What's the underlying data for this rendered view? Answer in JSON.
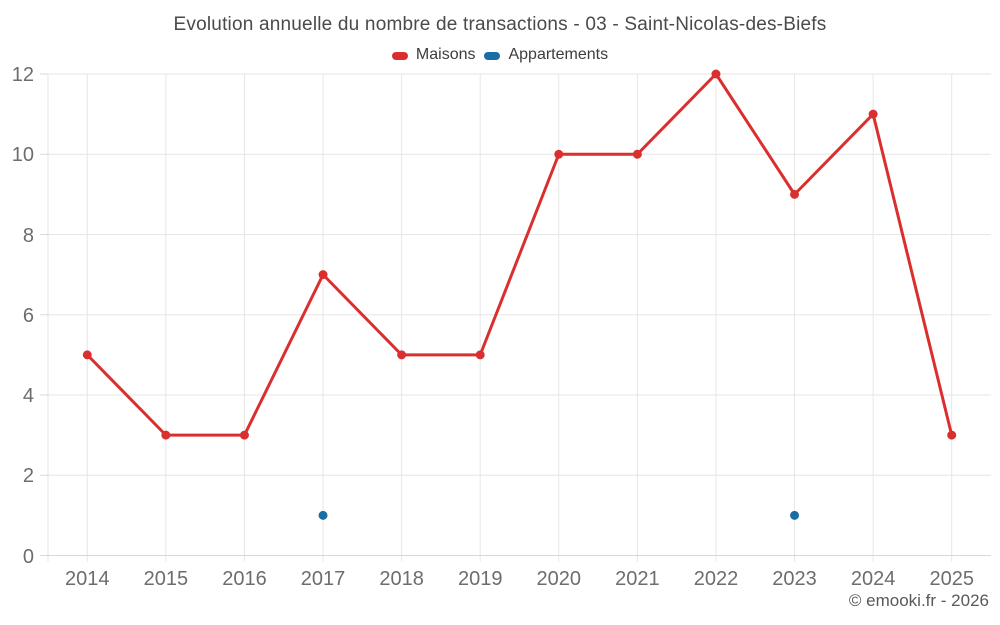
{
  "chart_data": {
    "type": "line",
    "title": "Evolution annuelle du nombre de transactions - 03 - Saint-Nicolas-des-Biefs",
    "categories": [
      "2014",
      "2015",
      "2016",
      "2017",
      "2018",
      "2019",
      "2020",
      "2021",
      "2022",
      "2023",
      "2024",
      "2025"
    ],
    "series": [
      {
        "name": "Maisons",
        "color": "#d9302f",
        "values": [
          5,
          3,
          3,
          7,
          5,
          5,
          10,
          10,
          12,
          9,
          11,
          3
        ]
      },
      {
        "name": "Appartements",
        "color": "#1a6da5",
        "values": [
          null,
          null,
          null,
          1,
          null,
          null,
          null,
          null,
          null,
          1,
          null,
          null
        ]
      }
    ],
    "xlabel": "",
    "ylabel": "",
    "ylim": [
      0,
      12
    ],
    "yticks": [
      0,
      2,
      4,
      6,
      8,
      10,
      12
    ],
    "grid": true,
    "legend_position": "top",
    "marker_radius": 4.5,
    "line_width": 3,
    "watermark": "© emooki.fr - 2026",
    "style": {
      "background": "#ffffff",
      "grid_color": "#e6e6e6",
      "axis_color": "#d8d8d8",
      "title_color": "#4a4a4a",
      "legend_text_color": "#3d3d3d",
      "tick_label_color": "#6d6d6d",
      "watermark_color": "#595959"
    }
  }
}
